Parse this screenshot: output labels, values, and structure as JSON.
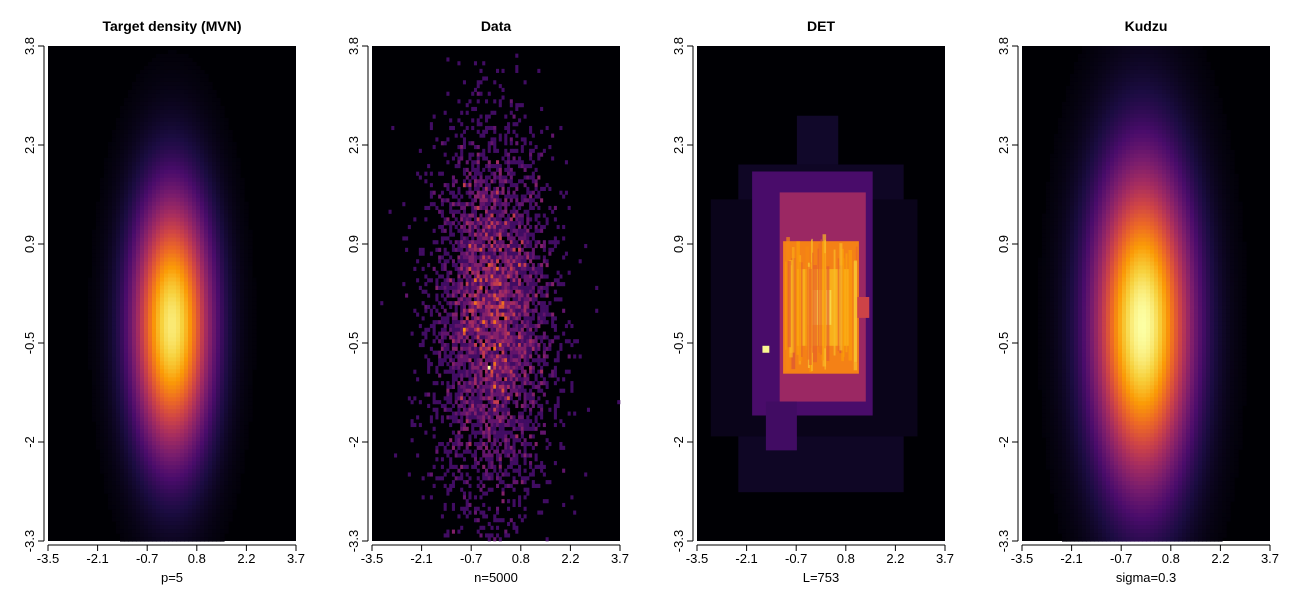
{
  "chart_data": [
    {
      "type": "heatmap",
      "panel_id": "mvn",
      "title": "Target density (MVN)",
      "xlabel": "p=5",
      "ylabel": "",
      "xlim": [
        -3.5,
        3.7
      ],
      "ylim": [
        -3.3,
        3.8
      ],
      "x_ticks": [
        "-3.5",
        "-2.1",
        "-0.7",
        "0.8",
        "2.2",
        "3.7"
      ],
      "y_ticks": [
        "-3.3",
        "-2",
        "-0.5",
        "0.9",
        "2.3",
        "3.8"
      ],
      "density": {
        "center_x": 0.1,
        "center_y": -0.2,
        "sd_x": 0.8,
        "sd_y": 1.3,
        "peak": 0.95
      }
    },
    {
      "type": "heatmap",
      "panel_id": "data",
      "title": "Data",
      "xlabel": "n=5000",
      "ylabel": "",
      "xlim": [
        -3.5,
        3.7
      ],
      "ylim": [
        -3.3,
        3.8
      ],
      "x_ticks": [
        "-3.5",
        "-2.1",
        "-0.7",
        "0.8",
        "2.2",
        "3.7"
      ],
      "y_ticks": [
        "-3.3",
        "-2",
        "-0.5",
        "0.9",
        "2.3",
        "3.8"
      ],
      "sample": {
        "n": 5000,
        "center_x": 0.0,
        "center_y": -0.1,
        "sd_x": 0.85,
        "sd_y": 1.3
      }
    },
    {
      "type": "heatmap",
      "panel_id": "det",
      "title": "DET",
      "xlabel": "L=753",
      "ylabel": "",
      "xlim": [
        -3.5,
        3.7
      ],
      "ylim": [
        -3.3,
        3.8
      ],
      "x_ticks": [
        "-3.5",
        "-2.1",
        "-0.7",
        "0.8",
        "2.2",
        "3.7"
      ],
      "y_ticks": [
        "-3.3",
        "-2",
        "-0.5",
        "0.9",
        "2.3",
        "3.8"
      ],
      "blocks": [
        {
          "x": [
            -2.3,
            2.5
          ],
          "y": [
            -2.6,
            2.1
          ],
          "v": 0.06
        },
        {
          "x": [
            -3.1,
            2.9
          ],
          "y": [
            -1.8,
            1.6
          ],
          "v": 0.04
        },
        {
          "x": [
            -0.6,
            0.6
          ],
          "y": [
            2.1,
            2.8
          ],
          "v": 0.07
        },
        {
          "x": [
            -1.9,
            1.6
          ],
          "y": [
            -1.5,
            2.0
          ],
          "v": 0.22
        },
        {
          "x": [
            -1.1,
            1.4
          ],
          "y": [
            -1.3,
            1.7
          ],
          "v": 0.42
        },
        {
          "x": [
            -1.0,
            1.2
          ],
          "y": [
            -0.9,
            1.0
          ],
          "v": 0.72
        },
        {
          "x": [
            -0.6,
            0.9
          ],
          "y": [
            -0.5,
            0.6
          ],
          "v": 0.82
        },
        {
          "x": [
            -0.3,
            0.4
          ],
          "y": [
            -0.2,
            0.3
          ],
          "v": 0.9
        },
        {
          "x": [
            -1.6,
            -1.4
          ],
          "y": [
            -0.6,
            -0.5
          ],
          "v": 0.98
        },
        {
          "x": [
            -1.5,
            -0.6
          ],
          "y": [
            -2.0,
            -1.3
          ],
          "v": 0.2
        },
        {
          "x": [
            1.1,
            1.5
          ],
          "y": [
            -0.1,
            0.2
          ],
          "v": 0.55
        }
      ]
    },
    {
      "type": "heatmap",
      "panel_id": "kudzu",
      "title": "Kudzu",
      "xlabel": "sigma=0.3",
      "ylabel": "",
      "xlim": [
        -3.5,
        3.7
      ],
      "ylim": [
        -3.3,
        3.8
      ],
      "x_ticks": [
        "-3.5",
        "-2.1",
        "-0.7",
        "0.8",
        "2.2",
        "3.7"
      ],
      "y_ticks": [
        "-3.3",
        "-2",
        "-0.5",
        "0.9",
        "2.3",
        "3.8"
      ],
      "density": {
        "center_x": 0.0,
        "center_y": -0.2,
        "sd_x": 1.0,
        "sd_y": 1.6,
        "peak": 1.0
      }
    }
  ],
  "colors": {
    "colormap": "inferno",
    "stops": [
      "#000004",
      "#1b0c41",
      "#4a0c6b",
      "#781c6d",
      "#a52c60",
      "#cf4446",
      "#ed6925",
      "#fb9b06",
      "#f7d13d",
      "#fcffa4"
    ]
  }
}
